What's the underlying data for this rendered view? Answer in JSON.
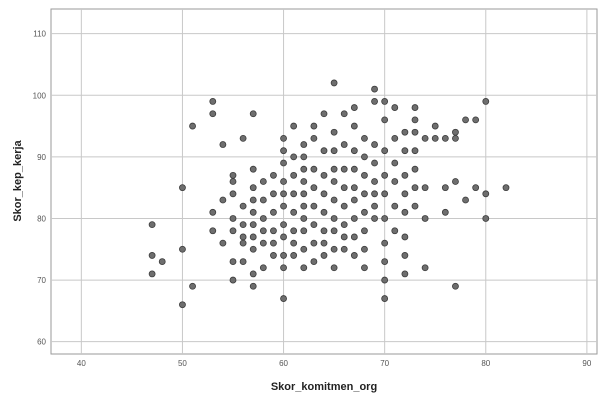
{
  "chart_data": {
    "type": "scatter",
    "xlabel": "Skor_komitmen_org",
    "ylabel": "Skor_kep_kerja",
    "xlim": [
      37,
      91
    ],
    "ylim": [
      58,
      114
    ],
    "xticks": [
      40,
      50,
      60,
      70,
      80,
      90
    ],
    "yticks": [
      60,
      70,
      80,
      90,
      100,
      110
    ],
    "grid": true,
    "points": [
      [
        47,
        79
      ],
      [
        47,
        74
      ],
      [
        47,
        71
      ],
      [
        48,
        73
      ],
      [
        50,
        85
      ],
      [
        50,
        75
      ],
      [
        50,
        66
      ],
      [
        51,
        95
      ],
      [
        51,
        69
      ],
      [
        53,
        99
      ],
      [
        53,
        97
      ],
      [
        53,
        81
      ],
      [
        53,
        78
      ],
      [
        54,
        92
      ],
      [
        54,
        83
      ],
      [
        54,
        76
      ],
      [
        55,
        87
      ],
      [
        55,
        86
      ],
      [
        55,
        84
      ],
      [
        55,
        80
      ],
      [
        55,
        78
      ],
      [
        55,
        73
      ],
      [
        55,
        70
      ],
      [
        56,
        93
      ],
      [
        56,
        82
      ],
      [
        56,
        79
      ],
      [
        56,
        77
      ],
      [
        56,
        76
      ],
      [
        56,
        73
      ],
      [
        57,
        97
      ],
      [
        57,
        88
      ],
      [
        57,
        85
      ],
      [
        57,
        83
      ],
      [
        57,
        81
      ],
      [
        57,
        79
      ],
      [
        57,
        77
      ],
      [
        57,
        75
      ],
      [
        57,
        71
      ],
      [
        57,
        69
      ],
      [
        58,
        86
      ],
      [
        58,
        83
      ],
      [
        58,
        80
      ],
      [
        58,
        78
      ],
      [
        58,
        76
      ],
      [
        58,
        72
      ],
      [
        59,
        87
      ],
      [
        59,
        84
      ],
      [
        59,
        81
      ],
      [
        59,
        78
      ],
      [
        59,
        76
      ],
      [
        59,
        74
      ],
      [
        60,
        93
      ],
      [
        60,
        91
      ],
      [
        60,
        89
      ],
      [
        60,
        86
      ],
      [
        60,
        84
      ],
      [
        60,
        82
      ],
      [
        60,
        79
      ],
      [
        60,
        77
      ],
      [
        60,
        74
      ],
      [
        60,
        72
      ],
      [
        60,
        67
      ],
      [
        61,
        95
      ],
      [
        61,
        90
      ],
      [
        61,
        87
      ],
      [
        61,
        84
      ],
      [
        61,
        81
      ],
      [
        61,
        78
      ],
      [
        61,
        76
      ],
      [
        61,
        74
      ],
      [
        62,
        92
      ],
      [
        62,
        90
      ],
      [
        62,
        88
      ],
      [
        62,
        86
      ],
      [
        62,
        84
      ],
      [
        62,
        82
      ],
      [
        62,
        80
      ],
      [
        62,
        78
      ],
      [
        62,
        75
      ],
      [
        62,
        72
      ],
      [
        63,
        95
      ],
      [
        63,
        93
      ],
      [
        63,
        88
      ],
      [
        63,
        85
      ],
      [
        63,
        82
      ],
      [
        63,
        79
      ],
      [
        63,
        76
      ],
      [
        63,
        73
      ],
      [
        64,
        97
      ],
      [
        64,
        91
      ],
      [
        64,
        87
      ],
      [
        64,
        84
      ],
      [
        64,
        81
      ],
      [
        64,
        78
      ],
      [
        64,
        76
      ],
      [
        64,
        74
      ],
      [
        65,
        102
      ],
      [
        65,
        94
      ],
      [
        65,
        91
      ],
      [
        65,
        88
      ],
      [
        65,
        86
      ],
      [
        65,
        83
      ],
      [
        65,
        80
      ],
      [
        65,
        78
      ],
      [
        65,
        75
      ],
      [
        65,
        72
      ],
      [
        66,
        97
      ],
      [
        66,
        92
      ],
      [
        66,
        88
      ],
      [
        66,
        85
      ],
      [
        66,
        82
      ],
      [
        66,
        79
      ],
      [
        66,
        77
      ],
      [
        66,
        75
      ],
      [
        67,
        98
      ],
      [
        67,
        95
      ],
      [
        67,
        91
      ],
      [
        67,
        88
      ],
      [
        67,
        85
      ],
      [
        67,
        83
      ],
      [
        67,
        80
      ],
      [
        67,
        77
      ],
      [
        67,
        74
      ],
      [
        68,
        93
      ],
      [
        68,
        90
      ],
      [
        68,
        87
      ],
      [
        68,
        84
      ],
      [
        68,
        81
      ],
      [
        68,
        78
      ],
      [
        68,
        75
      ],
      [
        68,
        72
      ],
      [
        69,
        101
      ],
      [
        69,
        99
      ],
      [
        69,
        92
      ],
      [
        69,
        89
      ],
      [
        69,
        86
      ],
      [
        69,
        84
      ],
      [
        69,
        82
      ],
      [
        69,
        80
      ],
      [
        70,
        99
      ],
      [
        70,
        96
      ],
      [
        70,
        91
      ],
      [
        70,
        87
      ],
      [
        70,
        84
      ],
      [
        70,
        80
      ],
      [
        70,
        76
      ],
      [
        70,
        73
      ],
      [
        70,
        70
      ],
      [
        70,
        67
      ],
      [
        71,
        98
      ],
      [
        71,
        93
      ],
      [
        71,
        89
      ],
      [
        71,
        86
      ],
      [
        71,
        82
      ],
      [
        71,
        78
      ],
      [
        72,
        94
      ],
      [
        72,
        91
      ],
      [
        72,
        87
      ],
      [
        72,
        84
      ],
      [
        72,
        81
      ],
      [
        72,
        77
      ],
      [
        72,
        74
      ],
      [
        72,
        71
      ],
      [
        73,
        98
      ],
      [
        73,
        96
      ],
      [
        73,
        94
      ],
      [
        73,
        91
      ],
      [
        73,
        88
      ],
      [
        73,
        85
      ],
      [
        73,
        82
      ],
      [
        74,
        93
      ],
      [
        74,
        85
      ],
      [
        74,
        80
      ],
      [
        74,
        72
      ],
      [
        75,
        95
      ],
      [
        75,
        93
      ],
      [
        76,
        93
      ],
      [
        76,
        85
      ],
      [
        76,
        81
      ],
      [
        77,
        94
      ],
      [
        77,
        93
      ],
      [
        77,
        86
      ],
      [
        77,
        69
      ],
      [
        78,
        96
      ],
      [
        78,
        83
      ],
      [
        79,
        96
      ],
      [
        79,
        85
      ],
      [
        80,
        99
      ],
      [
        80,
        84
      ],
      [
        80,
        80
      ],
      [
        82,
        85
      ]
    ]
  }
}
